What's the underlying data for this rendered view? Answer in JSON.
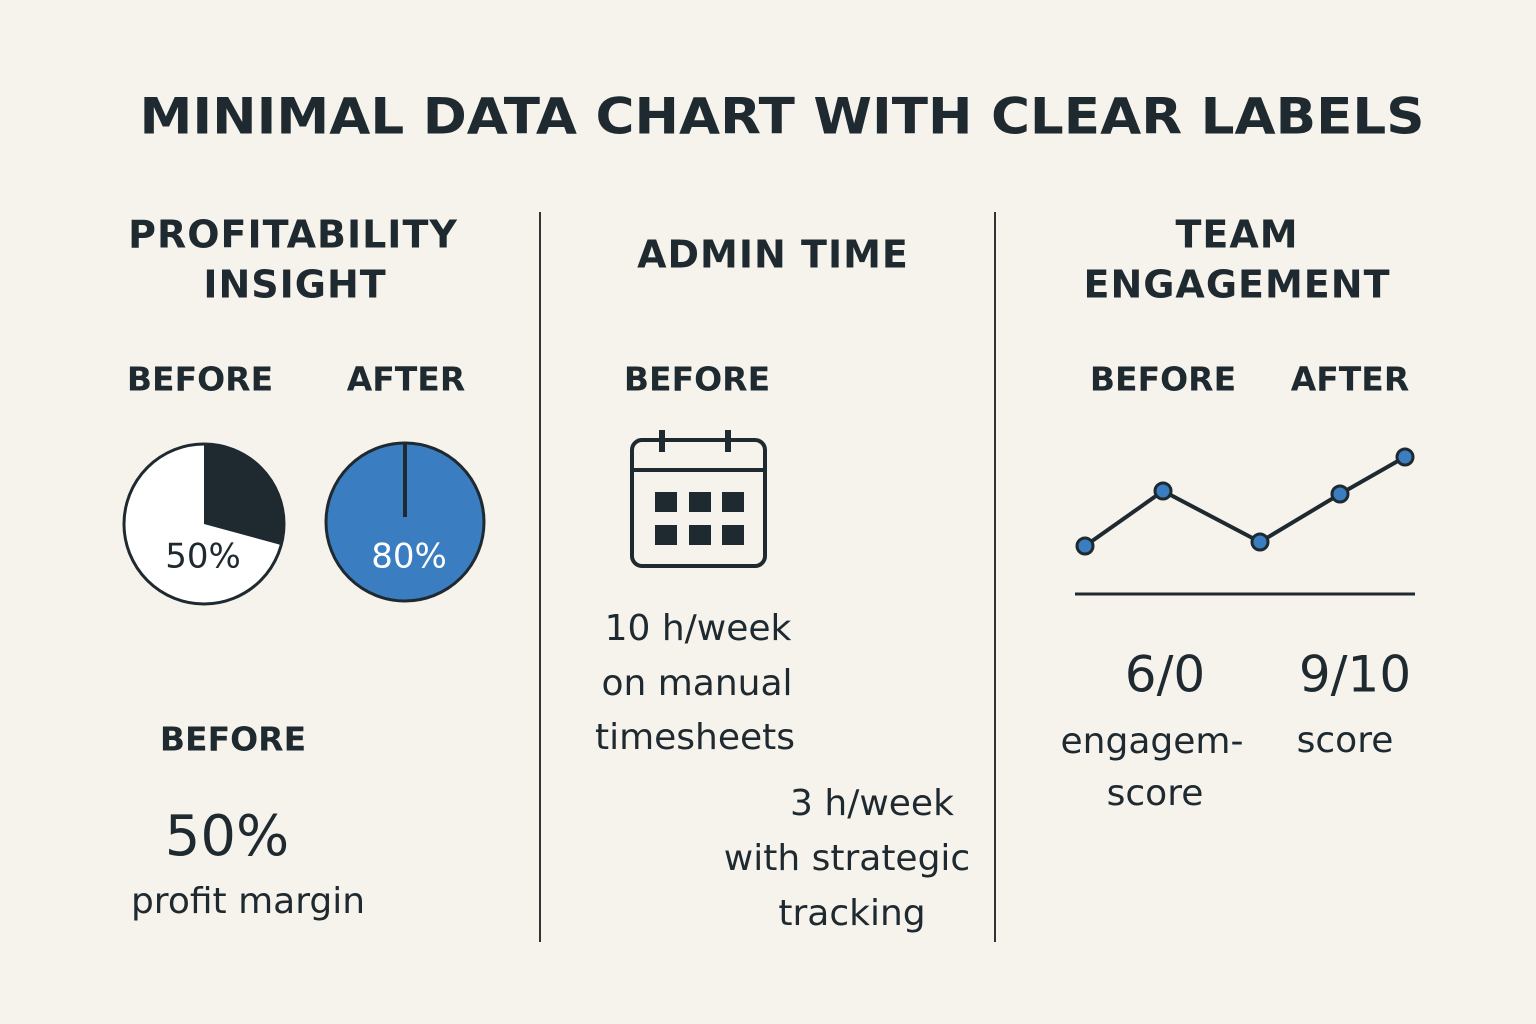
{
  "title": "MINIMAL DATA CHART WITH CLEAR LABELS",
  "panels": [
    {
      "heading": [
        "PROFITABILITY",
        "INSIGHT"
      ],
      "before_label": "BEFORE",
      "after_label": "AFTER",
      "before_pie_label": "50%",
      "after_pie_label": "80%",
      "summary_label": "BEFORE",
      "summary_value": "50%",
      "summary_text": "profit margin"
    },
    {
      "heading": [
        "ADMIN TIME"
      ],
      "before_label": "BEFORE",
      "before_text": [
        "10 h/week",
        "on manual",
        "timesheets"
      ],
      "after_text": [
        "3 h/week",
        "with strategic",
        "tracking"
      ]
    },
    {
      "heading": [
        "TEAM",
        "ENGAGEMENT"
      ],
      "before_label": "BEFORE",
      "after_label": "AFTER",
      "before_score": "6/0",
      "after_score": "9/10",
      "before_text": [
        "engagem-",
        "score"
      ],
      "after_text": [
        "score"
      ]
    }
  ]
}
